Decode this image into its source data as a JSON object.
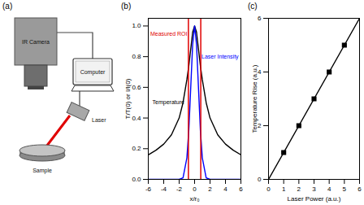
{
  "diagram": {
    "title": "(a)",
    "nodes": [
      {
        "label": "IR Camera"
      },
      {
        "label": "Computer"
      },
      {
        "label": "Laser"
      },
      {
        "label": "Sample"
      }
    ]
  },
  "chart_data": [
    {
      "type": "line",
      "title": "(b)",
      "x_label": "x/r₀",
      "y_label": "T/T(0) or I/I(0)",
      "xlim": [
        -6,
        6
      ],
      "xticks": [
        -6,
        -4,
        -2,
        0,
        2,
        4,
        6
      ],
      "ylim": [
        0,
        1.05
      ],
      "yticks": [
        {
          "value": 0,
          "label": "0.0"
        },
        0.2,
        0.4,
        0.6,
        0.8,
        {
          "value": 1,
          "label": "1.0"
        }
      ],
      "grid": false,
      "series": [
        {
          "name": "Temperature",
          "type": "line",
          "color": "#000000",
          "x": [
            -6,
            -5,
            -4,
            -3,
            -2,
            -1.5,
            -1,
            -0.75,
            -0.5,
            -0.25,
            0,
            0.25,
            0.5,
            0.75,
            1,
            1.5,
            2,
            3,
            4,
            5,
            6
          ],
          "values": [
            0.16,
            0.19,
            0.23,
            0.29,
            0.4,
            0.5,
            0.65,
            0.74,
            0.85,
            0.96,
            1.0,
            0.96,
            0.85,
            0.74,
            0.65,
            0.5,
            0.4,
            0.29,
            0.23,
            0.19,
            0.16
          ]
        },
        {
          "name": "Laser Intensity",
          "type": "line",
          "color": "#0000ff",
          "x": [
            -6,
            -2,
            -1.5,
            -1,
            -0.75,
            -0.5,
            -0.25,
            0,
            0.25,
            0.5,
            0.75,
            1,
            1.5,
            2,
            6
          ],
          "values": [
            0,
            0,
            0.01,
            0.14,
            0.32,
            0.6,
            0.88,
            1.0,
            0.88,
            0.6,
            0.32,
            0.14,
            0.01,
            0,
            0
          ]
        },
        {
          "name": "Measured ROI",
          "type": "vline",
          "color": "#e00000",
          "x": [
            -0.8,
            0.8
          ]
        }
      ],
      "annotations": [
        {
          "text": "Measured ROI",
          "x": -3.35,
          "y": 0.95,
          "color": "#e00000"
        },
        {
          "text": "Laser Intensity",
          "x": 3.3,
          "y": 0.8,
          "color": "#0000ff"
        },
        {
          "text": "Temperature",
          "x": -3.4,
          "y": 0.5,
          "color": "#000000"
        }
      ]
    },
    {
      "type": "line",
      "title": "(c)",
      "x_label": "Laser Power (a.u.)",
      "y_label": "Temperature Rise (a.u.)",
      "xlim": [
        0,
        6
      ],
      "xticks": [
        0,
        1,
        2,
        3,
        4,
        5,
        6
      ],
      "ylim": [
        0,
        6
      ],
      "yticks": [
        0,
        2,
        4,
        6
      ],
      "grid": false,
      "series": [
        {
          "type": "line",
          "color": "#000000",
          "x": [
            0,
            6
          ],
          "values": [
            0,
            6
          ]
        },
        {
          "type": "scatter",
          "marker": "square",
          "color": "#000000",
          "x": [
            1,
            2,
            3,
            4,
            5
          ],
          "values": [
            1,
            2,
            3,
            4,
            5
          ]
        }
      ],
      "annotations": []
    }
  ]
}
